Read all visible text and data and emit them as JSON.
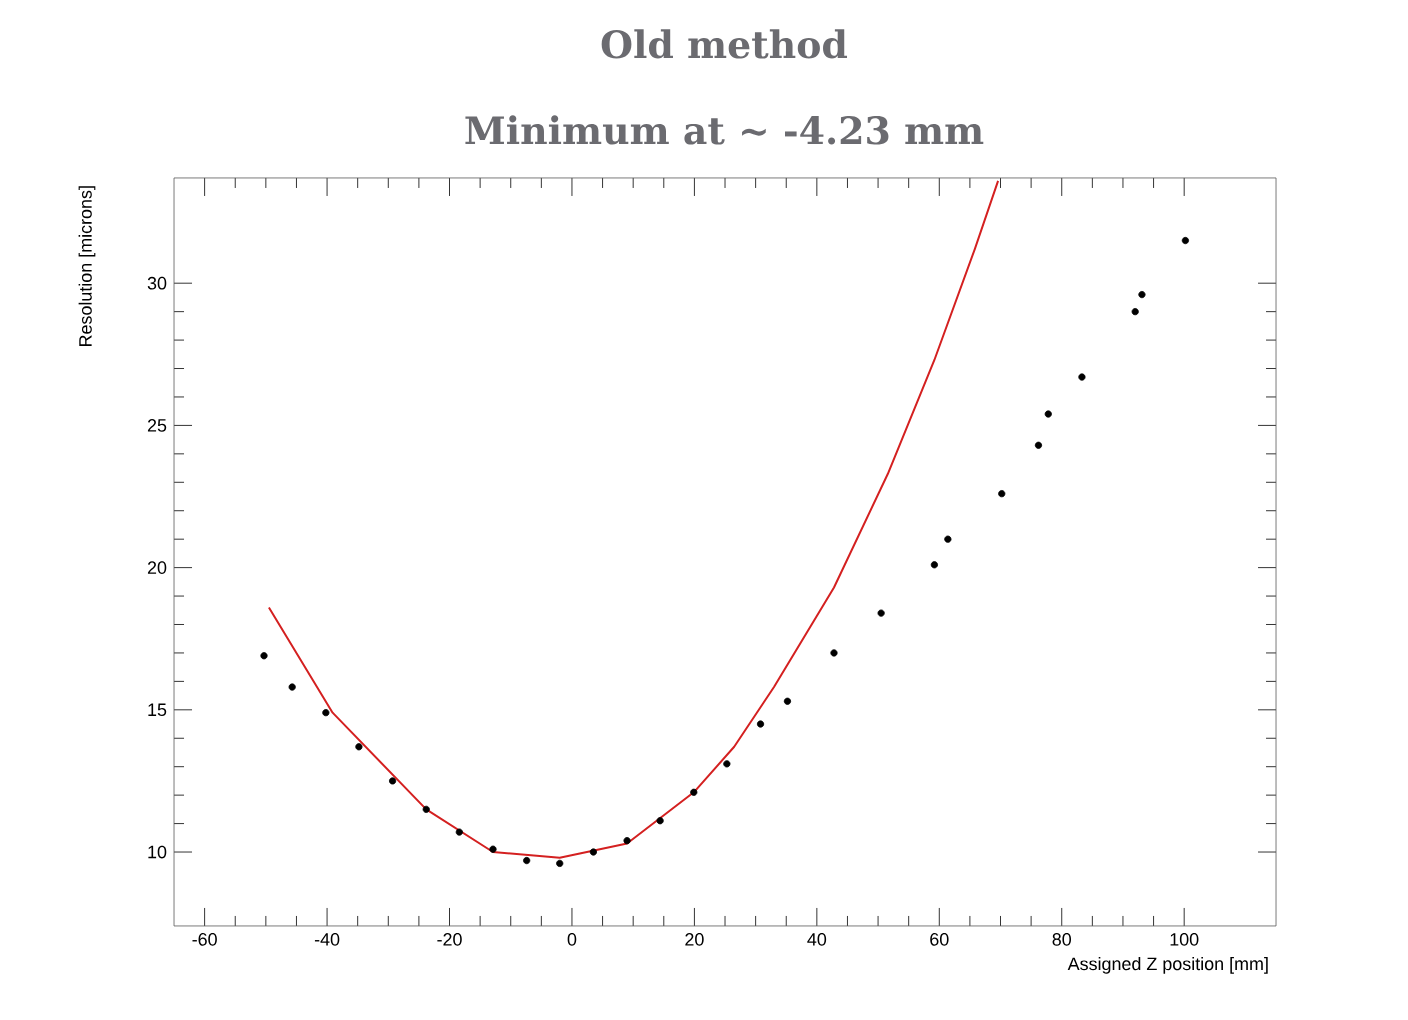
{
  "chart_data": {
    "type": "scatter",
    "title": "Old method",
    "subtitle": "Minimum at ~ -4.23 mm",
    "xlabel": "Assigned Z position [mm]",
    "ylabel": "Resolution [microns]",
    "xlim": [
      -65,
      115
    ],
    "ylim": [
      7.4,
      33.7
    ],
    "xticks": [
      -60,
      -40,
      -20,
      0,
      20,
      40,
      60,
      80,
      100
    ],
    "yticks": [
      10,
      15,
      20,
      25,
      30
    ],
    "grid": false,
    "series": [
      {
        "type": "scatter",
        "color": "#000000",
        "marker": "circle",
        "x": [
          -50.3,
          -45.7,
          -40.2,
          -34.8,
          -29.3,
          -23.8,
          -18.4,
          -12.9,
          -7.4,
          -2.0,
          3.5,
          9.0,
          14.4,
          19.9,
          25.3,
          30.8,
          35.2,
          42.8,
          50.5,
          59.2,
          61.4,
          70.2,
          76.2,
          77.8,
          83.3,
          92.0,
          93.1,
          100.2
        ],
        "values": [
          16.9,
          15.8,
          14.9,
          13.7,
          12.5,
          11.5,
          10.7,
          10.1,
          9.7,
          9.6,
          10.0,
          10.4,
          11.1,
          12.1,
          13.1,
          14.5,
          15.3,
          17.0,
          18.4,
          20.1,
          21.0,
          22.6,
          24.3,
          25.4,
          26.7,
          29.0,
          29.6,
          31.5
        ]
      },
      {
        "type": "line",
        "color": "#d42020",
        "marker": "none",
        "x": [
          -49.5,
          -39.1,
          -23.8,
          -12.9,
          -2.0,
          9.0,
          19.9,
          26.5,
          33.0,
          42.8,
          51.6,
          59.2,
          65.8,
          69.6
        ],
        "values": [
          18.6,
          14.9,
          11.5,
          10.0,
          9.8,
          10.3,
          12.1,
          13.7,
          15.8,
          19.3,
          23.3,
          27.3,
          31.2,
          33.6
        ]
      }
    ]
  }
}
